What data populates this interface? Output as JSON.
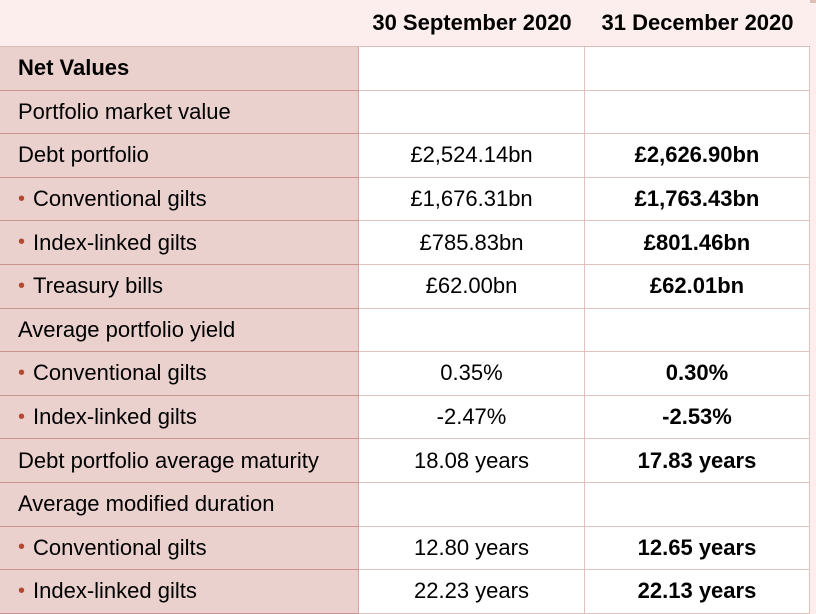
{
  "header": {
    "col1": "30 September 2020",
    "col2": "31 December 2020"
  },
  "rows": [
    {
      "label": "Net Values",
      "v1": "",
      "v2": "",
      "bold": true,
      "bullet": false
    },
    {
      "label": "Portfolio market value",
      "v1": "",
      "v2": "",
      "bold": false,
      "bullet": false
    },
    {
      "label": "Debt portfolio",
      "v1": "£2,524.14bn",
      "v2": "£2,626.90bn",
      "bold": false,
      "bullet": false
    },
    {
      "label": "Conventional gilts",
      "v1": "£1,676.31bn",
      "v2": "£1,763.43bn",
      "bold": false,
      "bullet": true
    },
    {
      "label": "Index-linked gilts",
      "v1": "£785.83bn",
      "v2": "£801.46bn",
      "bold": false,
      "bullet": true
    },
    {
      "label": "Treasury bills",
      "v1": "£62.00bn",
      "v2": "£62.01bn",
      "bold": false,
      "bullet": true
    },
    {
      "label": "Average portfolio yield",
      "v1": "",
      "v2": "",
      "bold": false,
      "bullet": false
    },
    {
      "label": "Conventional gilts",
      "v1": "0.35%",
      "v2": "0.30%",
      "bold": false,
      "bullet": true
    },
    {
      "label": "Index-linked gilts",
      "v1": "-2.47%",
      "v2": "-2.53%",
      "bold": false,
      "bullet": true
    },
    {
      "label": "Debt portfolio average maturity",
      "v1": "18.08 years",
      "v2": "17.83 years",
      "bold": false,
      "bullet": false
    },
    {
      "label": "Average modified duration",
      "v1": "",
      "v2": "",
      "bold": false,
      "bullet": false
    },
    {
      "label": "Conventional gilts",
      "v1": "12.80 years",
      "v2": "12.65 years",
      "bold": false,
      "bullet": true
    },
    {
      "label": "Index-linked gilts",
      "v1": "22.23 years",
      "v2": "22.13 years",
      "bold": false,
      "bullet": true
    }
  ],
  "colors": {
    "label_bg": "#ead1cd",
    "header_bg": "#fbeeec",
    "bullet": "#b5492f"
  },
  "bullet_glyph": "•"
}
